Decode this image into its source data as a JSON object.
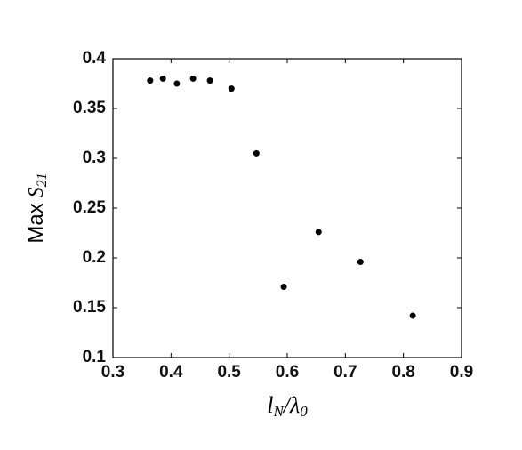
{
  "chart_data": {
    "type": "scatter",
    "ylabel_parts": [
      "Max",
      "S",
      "21"
    ],
    "xlabel_parts": [
      "l",
      "N",
      "/",
      "λ",
      "0"
    ],
    "x": [
      0.364,
      0.386,
      0.41,
      0.438,
      0.467,
      0.504,
      0.547,
      0.594,
      0.654,
      0.726,
      0.816
    ],
    "values": [
      0.378,
      0.38,
      0.375,
      0.38,
      0.378,
      0.37,
      0.305,
      0.171,
      0.226,
      0.196,
      0.142
    ],
    "color": "#000000",
    "xlim": [
      0.3,
      0.9
    ],
    "xticks": [
      0.3,
      0.4,
      0.5,
      0.6,
      0.7,
      0.8,
      0.9
    ],
    "ylim": [
      0.1,
      0.4
    ],
    "yticks": [
      0.1,
      0.15,
      0.2,
      0.25,
      0.3,
      0.35,
      0.4
    ]
  }
}
